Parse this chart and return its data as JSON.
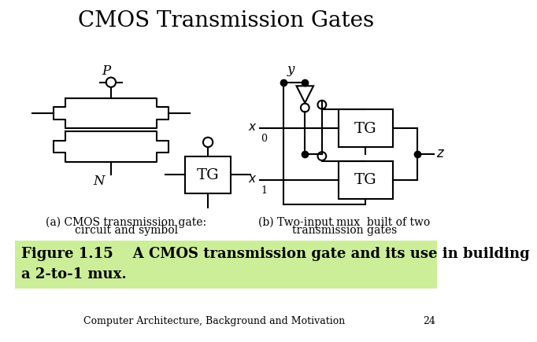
{
  "title": "CMOS Transmission Gates",
  "title_fontsize": 20,
  "bg_color": "#ffffff",
  "caption_bg": "#ccee99",
  "caption_text_line1": "Figure 1.15    A CMOS transmission gate and its use in building",
  "caption_text_line2": "a 2-to-1 mux.",
  "caption_fontsize": 13,
  "footer_text": "Computer Architecture, Background and Motivation",
  "footer_number": "24",
  "footer_fontsize": 9,
  "label_a_line1": "(a) CMOS transmission gate:",
  "label_a_line2": "circuit and symbol",
  "label_b_line1": "(b) Two-input mux  built of two",
  "label_b_line2": "transmission gates",
  "line_color": "#000000",
  "lw": 1.5
}
